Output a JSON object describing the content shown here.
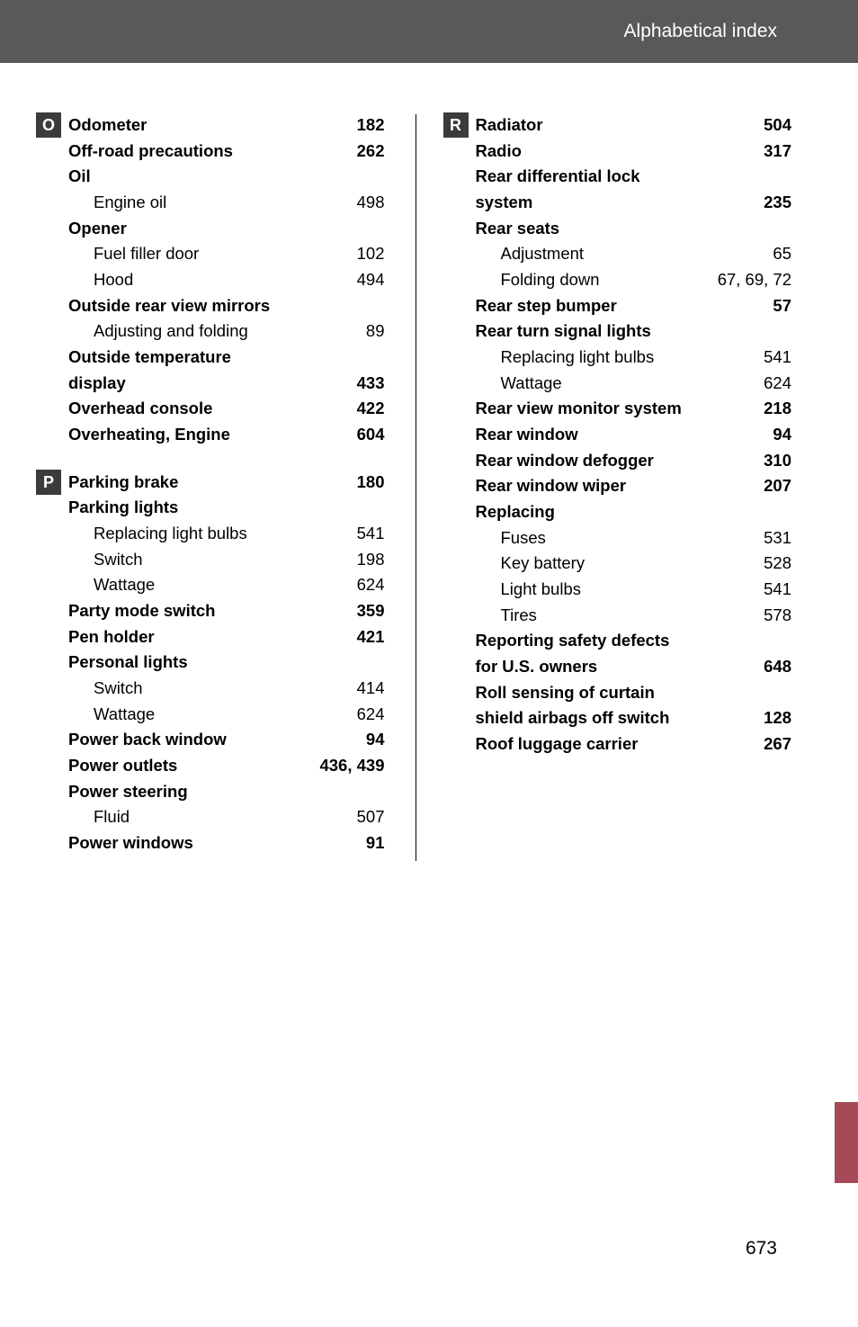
{
  "header": {
    "title": "Alphabetical index"
  },
  "pageNumber": "673",
  "columns": {
    "left": [
      {
        "letter": "O",
        "items": [
          {
            "type": "entry",
            "bold": true,
            "sub": false,
            "label": "Odometer ",
            "page": " 182"
          },
          {
            "type": "entry",
            "bold": true,
            "sub": false,
            "label": "Off-road precautions",
            "page": " 262"
          },
          {
            "type": "heading",
            "label": "Oil"
          },
          {
            "type": "entry",
            "bold": false,
            "sub": true,
            "label": "Engine oil",
            "page": " 498"
          },
          {
            "type": "heading",
            "label": "Opener"
          },
          {
            "type": "entry",
            "bold": false,
            "sub": true,
            "label": "Fuel filler door",
            "page": " 102"
          },
          {
            "type": "entry",
            "bold": false,
            "sub": true,
            "label": "Hood",
            "page": " 494"
          },
          {
            "type": "heading",
            "label": "Outside rear view mirrors"
          },
          {
            "type": "entry",
            "bold": false,
            "sub": true,
            "label": "Adjusting and folding ",
            "page": " 89"
          },
          {
            "type": "heading",
            "label": "Outside temperature"
          },
          {
            "type": "entry",
            "bold": true,
            "sub": false,
            "label": "  display ",
            "page": " 433"
          },
          {
            "type": "entry",
            "bold": true,
            "sub": false,
            "label": "Overhead console ",
            "page": " 422"
          },
          {
            "type": "entry",
            "bold": true,
            "sub": false,
            "label": "Overheating, Engine ",
            "page": " 604"
          }
        ]
      },
      {
        "letter": "P",
        "spaceBefore": true,
        "items": [
          {
            "type": "entry",
            "bold": true,
            "sub": false,
            "label": "Parking brake ",
            "page": " 180"
          },
          {
            "type": "heading",
            "label": "Parking lights"
          },
          {
            "type": "entry",
            "bold": false,
            "sub": true,
            "label": "Replacing light bulbs ",
            "page": " 541"
          },
          {
            "type": "entry",
            "bold": false,
            "sub": true,
            "label": "Switch",
            "page": " 198"
          },
          {
            "type": "entry",
            "bold": false,
            "sub": true,
            "label": "Wattage ",
            "page": " 624"
          },
          {
            "type": "entry",
            "bold": true,
            "sub": false,
            "label": "Party mode switch ",
            "page": " 359"
          },
          {
            "type": "entry",
            "bold": true,
            "sub": false,
            "label": "Pen holder",
            "page": " 421"
          },
          {
            "type": "heading",
            "label": "Personal lights"
          },
          {
            "type": "entry",
            "bold": false,
            "sub": true,
            "label": "Switch",
            "page": " 414"
          },
          {
            "type": "entry",
            "bold": false,
            "sub": true,
            "label": "Wattage ",
            "page": " 624"
          },
          {
            "type": "entry",
            "bold": true,
            "sub": false,
            "label": "Power back window ",
            "page": " 94"
          },
          {
            "type": "entry",
            "bold": true,
            "sub": false,
            "label": "Power outlets",
            "page": " 436, 439"
          },
          {
            "type": "heading",
            "label": "Power steering"
          },
          {
            "type": "entry",
            "bold": false,
            "sub": true,
            "label": "Fluid",
            "page": " 507"
          },
          {
            "type": "entry",
            "bold": true,
            "sub": false,
            "label": "Power windows ",
            "page": " 91"
          }
        ]
      }
    ],
    "right": [
      {
        "letter": "R",
        "items": [
          {
            "type": "entry",
            "bold": true,
            "sub": false,
            "label": "Radiator ",
            "page": "504"
          },
          {
            "type": "entry",
            "bold": true,
            "sub": false,
            "label": "Radio ",
            "page": "317"
          },
          {
            "type": "heading",
            "label": "Rear differential lock"
          },
          {
            "type": "entry",
            "bold": true,
            "sub": false,
            "label": "  system ",
            "page": "235"
          },
          {
            "type": "heading",
            "label": "Rear seats"
          },
          {
            "type": "entry",
            "bold": false,
            "sub": true,
            "label": "Adjustment ",
            "page": "65"
          },
          {
            "type": "entry",
            "bold": false,
            "sub": true,
            "label": "Folding down",
            "page": "67, 69, 72"
          },
          {
            "type": "entry",
            "bold": true,
            "sub": false,
            "label": "Rear step bumper ",
            "page": "57"
          },
          {
            "type": "heading",
            "label": "Rear turn signal lights"
          },
          {
            "type": "entry",
            "bold": false,
            "sub": true,
            "label": "Replacing light bulbs ",
            "page": "541"
          },
          {
            "type": "entry",
            "bold": false,
            "sub": true,
            "label": "Wattage",
            "page": "624"
          },
          {
            "type": "entry",
            "bold": true,
            "sub": false,
            "label": "Rear view monitor system ",
            "page": "218"
          },
          {
            "type": "entry",
            "bold": true,
            "sub": false,
            "label": "Rear window",
            "page": "94"
          },
          {
            "type": "entry",
            "bold": true,
            "sub": false,
            "label": "Rear window defogger ",
            "page": "310"
          },
          {
            "type": "entry",
            "bold": true,
            "sub": false,
            "label": "Rear window wiper ",
            "page": "207"
          },
          {
            "type": "heading",
            "label": "Replacing"
          },
          {
            "type": "entry",
            "bold": false,
            "sub": true,
            "label": "Fuses ",
            "page": "531"
          },
          {
            "type": "entry",
            "bold": false,
            "sub": true,
            "label": "Key battery ",
            "page": "528"
          },
          {
            "type": "entry",
            "bold": false,
            "sub": true,
            "label": "Light bulbs",
            "page": "541"
          },
          {
            "type": "entry",
            "bold": false,
            "sub": true,
            "label": "Tires ",
            "page": "578"
          },
          {
            "type": "heading",
            "label": "Reporting safety defects"
          },
          {
            "type": "entry",
            "bold": true,
            "sub": false,
            "label": "  for U.S. owners ",
            "page": "648"
          },
          {
            "type": "heading",
            "label": "Roll sensing of curtain"
          },
          {
            "type": "entry",
            "bold": true,
            "sub": false,
            "label": "  shield airbags off switch",
            "page": "128"
          },
          {
            "type": "entry",
            "bold": true,
            "sub": false,
            "label": "Roof luggage carrier",
            "page": "267"
          }
        ]
      }
    ]
  }
}
